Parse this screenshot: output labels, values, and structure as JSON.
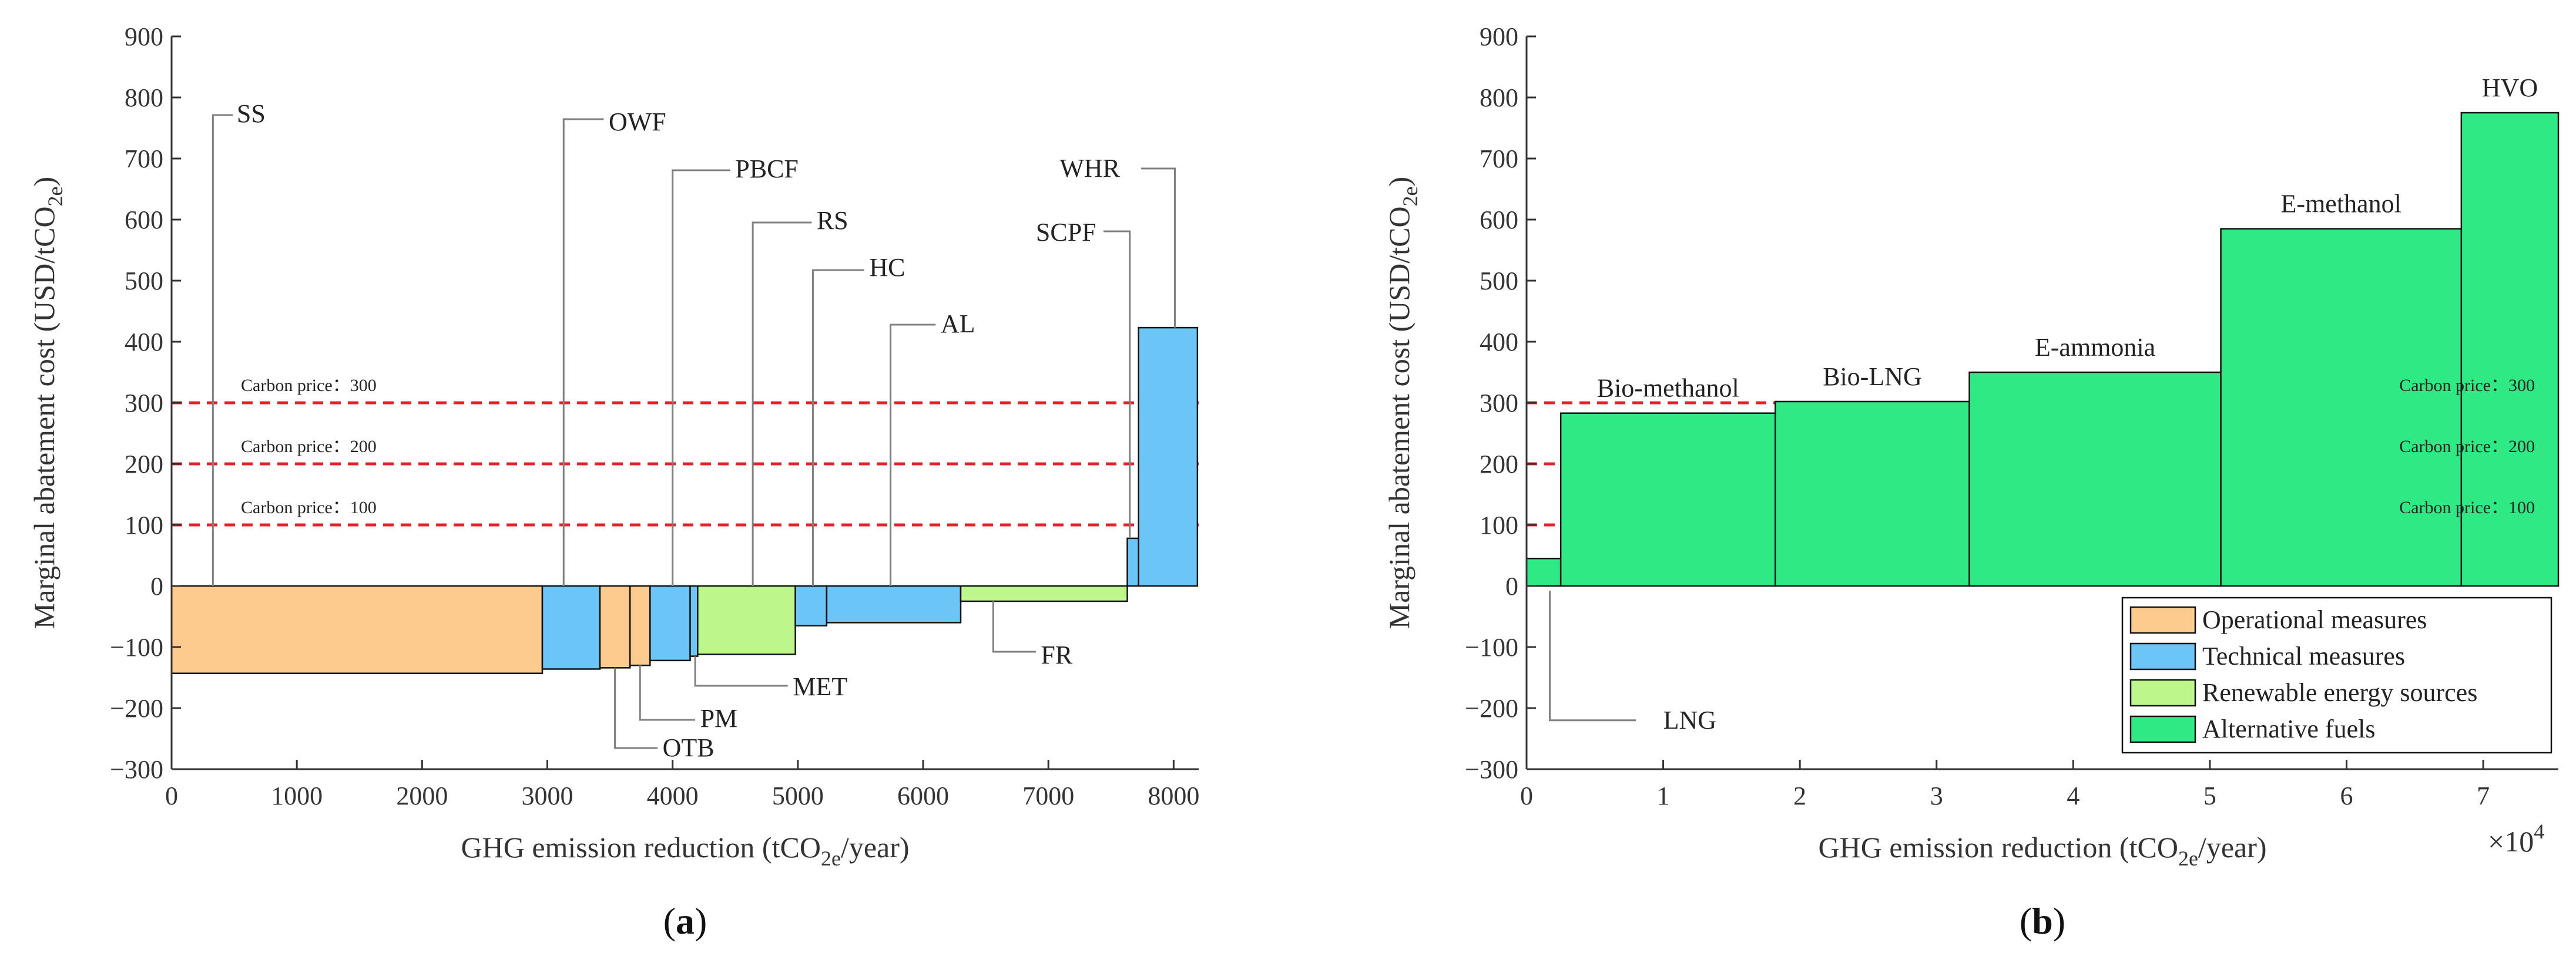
{
  "chart_data": [
    {
      "type": "bar",
      "variant": "marginal abatement cost curve",
      "panel_label": "a",
      "xlabel": "GHG emission reduction (tCO2e/year)",
      "ylabel": "Marginal abatement cost (USD/tCO2e)",
      "xlim": [
        0,
        8200
      ],
      "ylim": [
        -300,
        900
      ],
      "xticks": [
        0,
        1000,
        2000,
        3000,
        4000,
        5000,
        6000,
        7000,
        8000
      ],
      "yticks": [
        -300,
        -200,
        -100,
        0,
        100,
        200,
        300,
        400,
        500,
        600,
        700,
        800,
        900
      ],
      "xtick_labels": [
        "0",
        "1000",
        "2000",
        "3000",
        "4000",
        "5000",
        "6000",
        "7000",
        "8000"
      ],
      "ytick_labels": [
        "−300",
        "−200",
        "−100",
        "0",
        "100",
        "200",
        "300",
        "400",
        "500",
        "600",
        "700",
        "800",
        "900"
      ],
      "carbon_prices": [
        {
          "value": 300,
          "label": "Carbon price：300"
        },
        {
          "value": 200,
          "label": "Carbon price：200"
        },
        {
          "value": 100,
          "label": "Carbon price：100"
        }
      ],
      "bars": [
        {
          "name": "SS",
          "x0": 0,
          "x1": 2960,
          "cost": -143,
          "category": "Operational measures"
        },
        {
          "name": "OWF",
          "x0": 2960,
          "x1": 3420,
          "cost": -136,
          "category": "Technical measures"
        },
        {
          "name": "OTB",
          "x0": 3420,
          "x1": 3660,
          "cost": -134,
          "category": "Operational measures"
        },
        {
          "name": "PM",
          "x0": 3660,
          "x1": 3820,
          "cost": -130,
          "category": "Operational measures"
        },
        {
          "name": "PBCF",
          "x0": 3820,
          "x1": 4140,
          "cost": -122,
          "category": "Technical measures"
        },
        {
          "name": "MET",
          "x0": 4140,
          "x1": 4200,
          "cost": -115,
          "category": "Technical measures"
        },
        {
          "name": "RS",
          "x0": 4200,
          "x1": 4980,
          "cost": -112,
          "category": "Renewable energy sources"
        },
        {
          "name": "HC",
          "x0": 4980,
          "x1": 5230,
          "cost": -65,
          "category": "Technical measures"
        },
        {
          "name": "AL",
          "x0": 5230,
          "x1": 6300,
          "cost": -60,
          "category": "Technical measures"
        },
        {
          "name": "FR",
          "x0": 6300,
          "x1": 7630,
          "cost": -25,
          "category": "Renewable energy sources"
        },
        {
          "name": "SCPF",
          "x0": 7630,
          "x1": 7720,
          "cost": 78,
          "category": "Technical measures"
        },
        {
          "name": "WHR",
          "x0": 7720,
          "x1": 8190,
          "cost": 423,
          "category": "Technical measures"
        }
      ]
    },
    {
      "type": "bar",
      "variant": "marginal abatement cost curve",
      "panel_label": "b",
      "xlabel": "GHG emission reduction (tCO2e/year)",
      "ylabel": "Marginal abatement cost (USD/tCO2e)",
      "x_multiplier": "×10",
      "x_multiplier_exp": "4",
      "xlim": [
        0,
        7.55
      ],
      "ylim": [
        -300,
        900
      ],
      "xticks": [
        0,
        1,
        2,
        3,
        4,
        5,
        6,
        7
      ],
      "yticks": [
        -300,
        -200,
        -100,
        0,
        100,
        200,
        300,
        400,
        500,
        600,
        700,
        800,
        900
      ],
      "xtick_labels": [
        "0",
        "1",
        "2",
        "3",
        "4",
        "5",
        "6",
        "7"
      ],
      "ytick_labels": [
        "−300",
        "−200",
        "−100",
        "0",
        "100",
        "200",
        "300",
        "400",
        "500",
        "600",
        "700",
        "800",
        "900"
      ],
      "carbon_prices": [
        {
          "value": 300,
          "label": "Carbon price：300"
        },
        {
          "value": 200,
          "label": "Carbon price：200"
        },
        {
          "value": 100,
          "label": "Carbon price：100"
        }
      ],
      "bars": [
        {
          "name": "LNG",
          "x0": 0,
          "x1": 0.25,
          "cost": 45,
          "category": "Alternative fuels"
        },
        {
          "name": "Bio-methanol",
          "x0": 0.25,
          "x1": 1.82,
          "cost": 283,
          "category": "Alternative fuels"
        },
        {
          "name": "Bio-LNG",
          "x0": 1.82,
          "x1": 3.24,
          "cost": 302,
          "category": "Alternative fuels"
        },
        {
          "name": "E-ammonia",
          "x0": 3.24,
          "x1": 5.08,
          "cost": 350,
          "category": "Alternative fuels"
        },
        {
          "name": "E-methanol",
          "x0": 5.08,
          "x1": 6.84,
          "cost": 585,
          "category": "Alternative fuels"
        },
        {
          "name": "HVO",
          "x0": 6.84,
          "x1": 7.55,
          "cost": 775,
          "category": "Alternative fuels"
        }
      ]
    }
  ],
  "legend": [
    {
      "label": "Operational measures",
      "color": "#fdca8d"
    },
    {
      "label": "Technical measures",
      "color": "#6cc5f7"
    },
    {
      "label": "Renewable energy sources",
      "color": "#bdf78c"
    },
    {
      "label": "Alternative fuels",
      "color": "#2fe985"
    }
  ],
  "colors": {
    "Operational measures": "#fdca8d",
    "Technical measures": "#6cc5f7",
    "Renewable energy sources": "#bdf78c",
    "Alternative fuels": "#2fe985",
    "carbon_price_line": "#e3242b",
    "annotation_line": "#808080",
    "axis": "#333333"
  }
}
